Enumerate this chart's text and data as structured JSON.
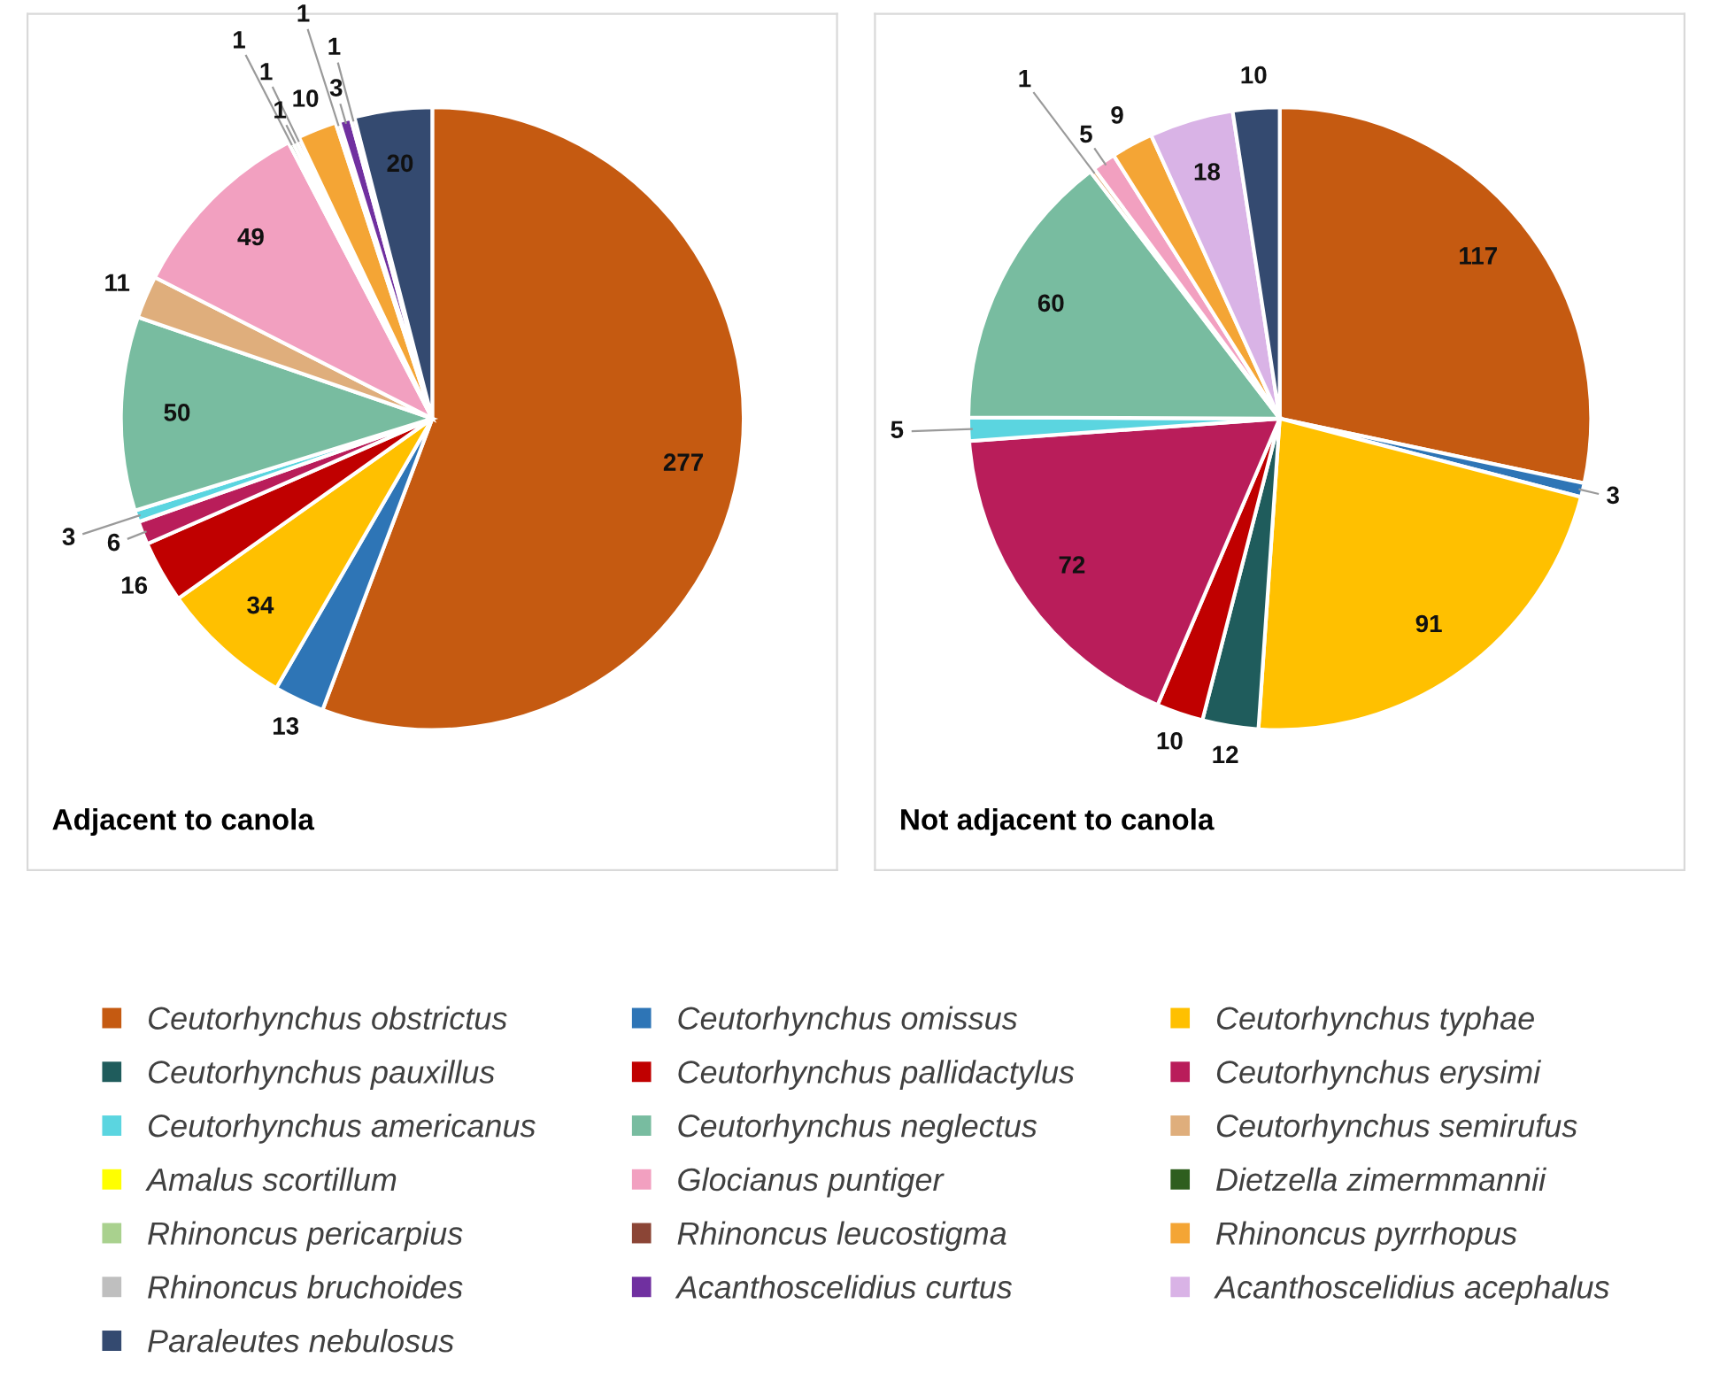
{
  "chart_data": [
    {
      "type": "pie",
      "title": "Adjacent to canola",
      "legend": "bottom",
      "categories": [
        "Ceutorhynchus obstrictus",
        "Ceutorhynchus omissus",
        "Ceutorhynchus typhae",
        "Ceutorhynchus pauxillus",
        "Ceutorhynchus pallidactylus",
        "Ceutorhynchus erysimi",
        "Ceutorhynchus americanus",
        "Ceutorhynchus neglectus",
        "Ceutorhynchus semirufus",
        "Amalus scortillum",
        "Glocianus puntiger",
        "Dietzella zimermmannii",
        "Rhinoncus pericarpius",
        "Rhinoncus leucostigma",
        "Rhinoncus pyrrhopus",
        "Rhinoncus bruchoides",
        "Acanthoscelidius curtus",
        "Acanthoscelidius acephalus",
        "Paraleutes nebulosus"
      ],
      "values": [
        277,
        13,
        34,
        null,
        16,
        6,
        3,
        50,
        11,
        null,
        49,
        1,
        1,
        1,
        10,
        1,
        3,
        1,
        20
      ],
      "colors": [
        "#c55a11",
        "#2e75b6",
        "#ffc000",
        "#1f5c5c",
        "#c00000",
        "#b91d5a",
        "#5bd5e0",
        "#78bca0",
        "#dfae7c",
        "#ffff00",
        "#f2a0c0",
        "#2e5e1e",
        "#a9d18e",
        "#8b4536",
        "#f4a535",
        "#bfbfbf",
        "#7030a0",
        "#d9b3e6",
        "#344a70"
      ],
      "data_labels": true
    },
    {
      "type": "pie",
      "title": "Not adjacent to canola",
      "categories": [
        null,
        null,
        null,
        null,
        null,
        null,
        null,
        null,
        null,
        null,
        null,
        null,
        null,
        null,
        null,
        null,
        null,
        null,
        null
      ],
      "values": [
        117,
        3,
        91,
        12,
        10,
        72,
        5,
        60,
        1,
        null,
        5,
        null,
        null,
        null,
        9,
        null,
        null,
        18,
        10
      ],
      "colors": [
        "#c55a11",
        "#2e75b6",
        "#ffc000",
        "#1f5c5c",
        "#c00000",
        "#b91d5a",
        "#5bd5e0",
        "#78bca0",
        "#dfae7c",
        "#ffff00",
        "#f2a0c0",
        "#2e5e1e",
        "#a9d18e",
        "#8b4536",
        "#f4a535",
        "#bfbfbf",
        "#7030a0",
        "#d9b3e6",
        "#344a70"
      ],
      "data_labels": true
    }
  ]
}
